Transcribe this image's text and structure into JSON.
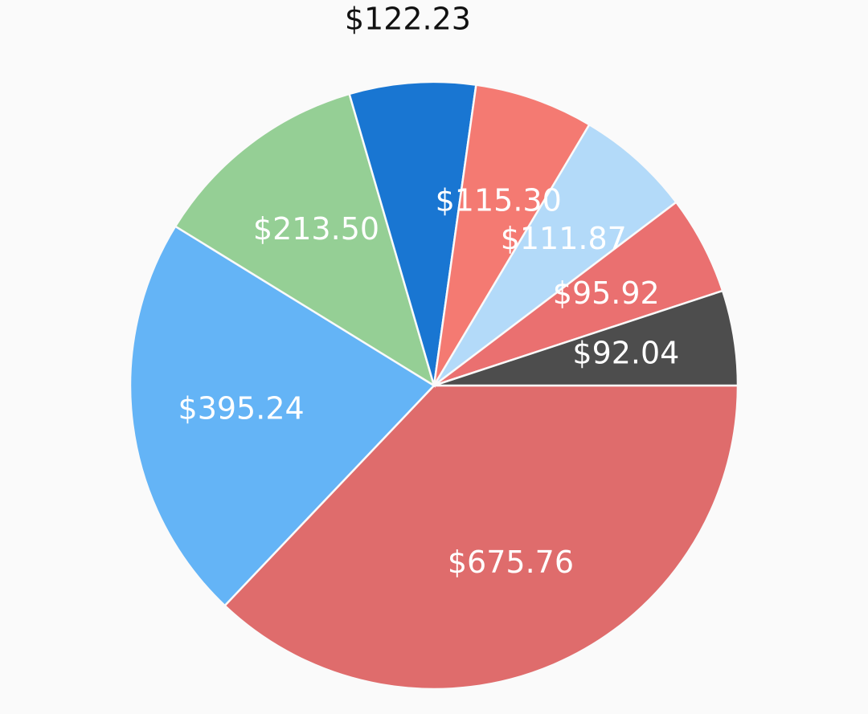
{
  "chart_data": {
    "type": "pie",
    "categories": [
      null,
      null,
      null,
      null,
      null,
      null,
      null,
      null
    ],
    "values": [
      675.76,
      395.24,
      213.5,
      122.23,
      115.3,
      111.87,
      95.92,
      92.04
    ],
    "value_labels": [
      "$675.76",
      "$395.24",
      "$213.50",
      "$122.23",
      "$115.30",
      "$111.87",
      "$95.92",
      "$92.04"
    ],
    "colors": [
      "#df6c6c",
      "#64b4f6",
      "#95cf95",
      "#1976d2",
      "#f47a72",
      "#b3daf9",
      "#ea7070",
      "#4d4d4d"
    ]
  }
}
